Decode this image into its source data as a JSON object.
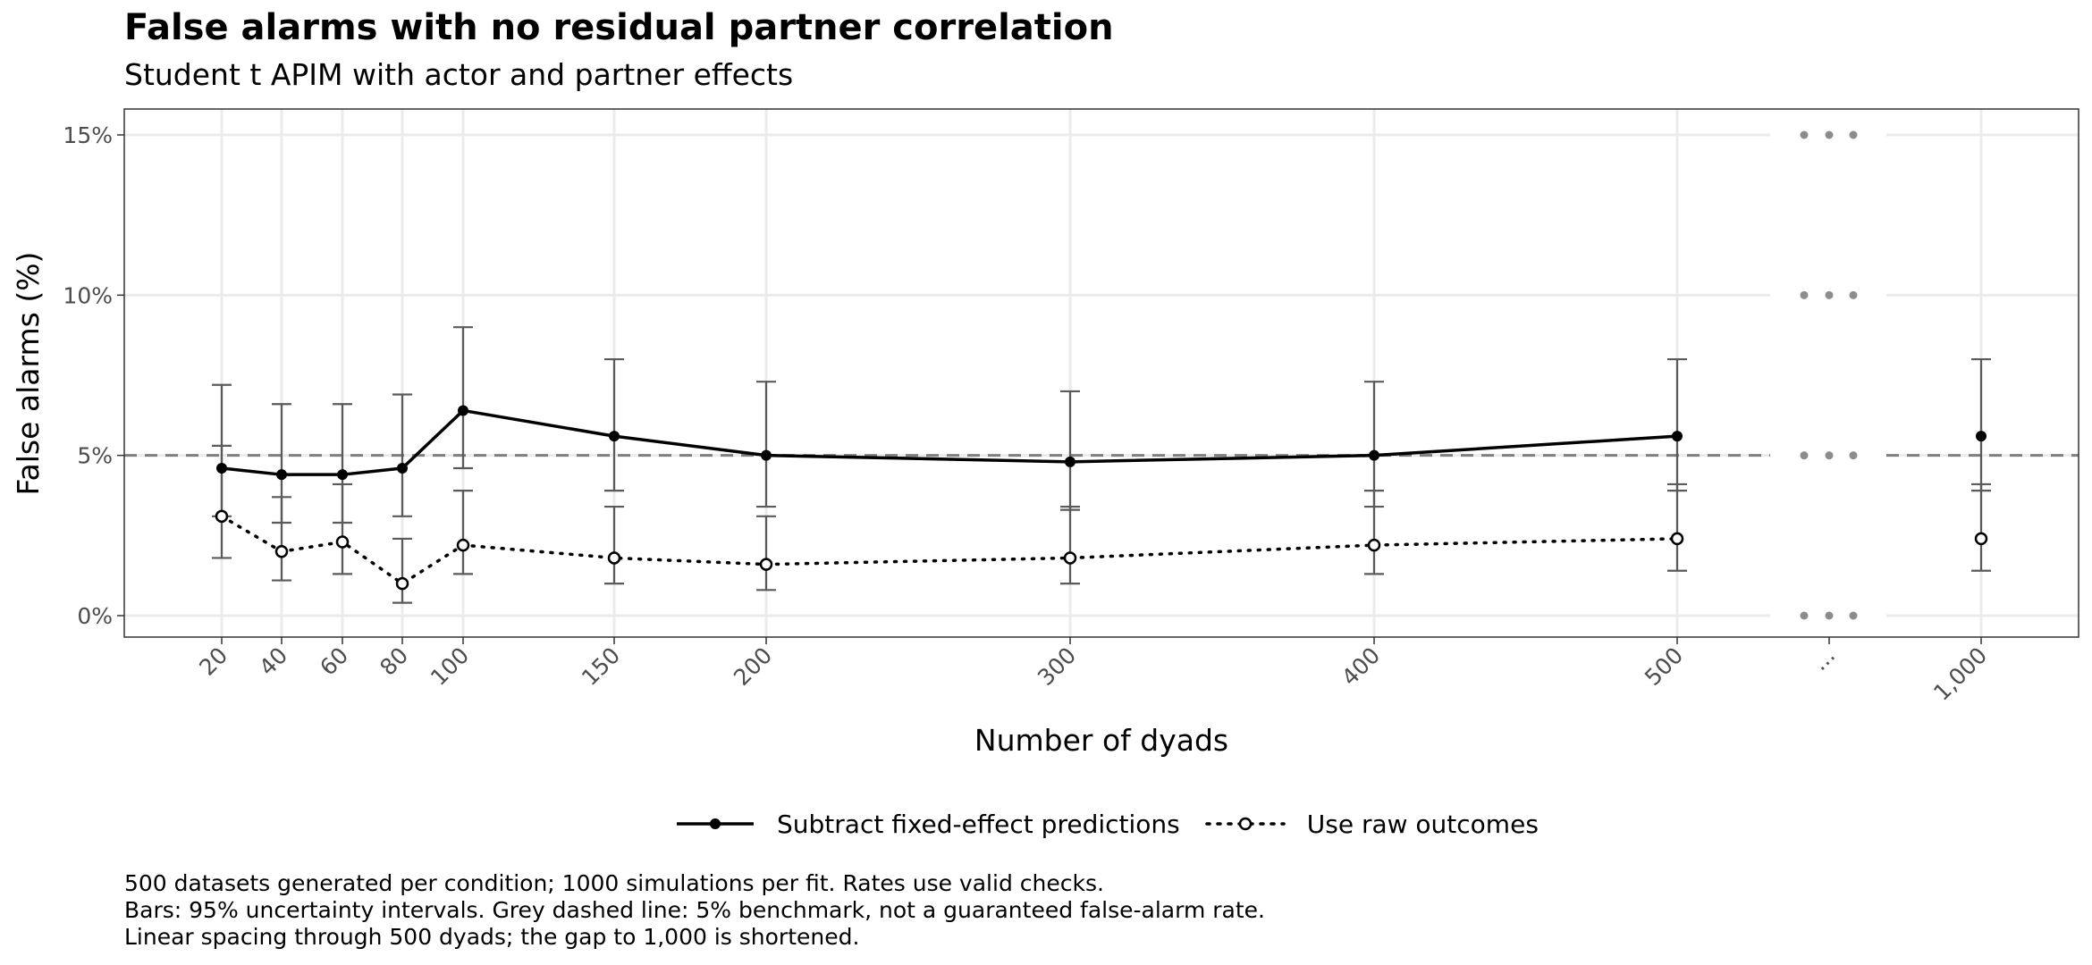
{
  "title": "False alarms with no residual partner correlation",
  "subtitle": "Student t APIM with actor and partner effects",
  "caption": [
    "500 datasets generated per condition; 1000 simulations per fit. Rates use valid checks.",
    "Bars: 95% uncertainty intervals. Grey dashed line: 5% benchmark, not a guaranteed false-alarm rate.",
    "Linear spacing through 500 dyads; the gap to 1,000 is shortened."
  ],
  "chart_data": {
    "type": "line",
    "xlabel": "Number of dyads",
    "ylabel": "False alarms (%)",
    "ylim": [
      -0.6,
      14.2
    ],
    "y_ticks": [
      0,
      5,
      10,
      15
    ],
    "y_tick_labels": [
      "0%",
      "5%",
      "10%",
      "15%"
    ],
    "x_tick_labels": [
      "20",
      "40",
      "60",
      "80",
      "100",
      "150",
      "200",
      "300",
      "400",
      "500",
      "...",
      "1,000"
    ],
    "x_break_label": "...",
    "benchmark": 5,
    "grid": true,
    "legend_position": "bottom",
    "series": [
      {
        "name": "Subtract fixed-effect predictions",
        "style": "solid",
        "marker": "filled-circle",
        "color": "#000000",
        "points": [
          {
            "x": "20",
            "y": 4.6,
            "lo": 3.1,
            "hi": 7.2
          },
          {
            "x": "40",
            "y": 4.4,
            "lo": 2.9,
            "hi": 6.6
          },
          {
            "x": "60",
            "y": 4.4,
            "lo": 2.9,
            "hi": 6.6
          },
          {
            "x": "80",
            "y": 4.6,
            "lo": 3.1,
            "hi": 6.9
          },
          {
            "x": "100",
            "y": 6.4,
            "lo": 4.6,
            "hi": 9.0
          },
          {
            "x": "150",
            "y": 5.6,
            "lo": 3.9,
            "hi": 8.0
          },
          {
            "x": "200",
            "y": 5.0,
            "lo": 3.4,
            "hi": 7.3
          },
          {
            "x": "300",
            "y": 4.8,
            "lo": 3.3,
            "hi": 7.0
          },
          {
            "x": "400",
            "y": 5.0,
            "lo": 3.4,
            "hi": 7.3
          },
          {
            "x": "500",
            "y": 5.6,
            "lo": 3.9,
            "hi": 8.0
          },
          {
            "x": "1,000",
            "y": 5.6,
            "lo": 3.9,
            "hi": 8.0
          }
        ]
      },
      {
        "name": "Use raw outcomes",
        "style": "dotted",
        "marker": "open-circle",
        "color": "#000000",
        "points": [
          {
            "x": "20",
            "y": 3.1,
            "lo": 1.8,
            "hi": 5.3
          },
          {
            "x": "40",
            "y": 2.0,
            "lo": 1.1,
            "hi": 3.7
          },
          {
            "x": "60",
            "y": 2.3,
            "lo": 1.3,
            "hi": 4.1
          },
          {
            "x": "80",
            "y": 1.0,
            "lo": 0.4,
            "hi": 2.4
          },
          {
            "x": "100",
            "y": 2.2,
            "lo": 1.3,
            "hi": 3.9
          },
          {
            "x": "150",
            "y": 1.8,
            "lo": 1.0,
            "hi": 3.4
          },
          {
            "x": "200",
            "y": 1.6,
            "lo": 0.8,
            "hi": 3.1
          },
          {
            "x": "300",
            "y": 1.8,
            "lo": 1.0,
            "hi": 3.4
          },
          {
            "x": "400",
            "y": 2.2,
            "lo": 1.3,
            "hi": 3.9
          },
          {
            "x": "500",
            "y": 2.4,
            "lo": 1.4,
            "hi": 4.1
          },
          {
            "x": "1,000",
            "y": 2.4,
            "lo": 1.4,
            "hi": 4.1
          }
        ]
      }
    ]
  },
  "colors": {
    "panel_border": "#333333",
    "grid": "#ebebeb",
    "errorbar": "#5a5a5a",
    "benchmark": "#7f7f7f",
    "break_dots": "#8c8c8c"
  }
}
